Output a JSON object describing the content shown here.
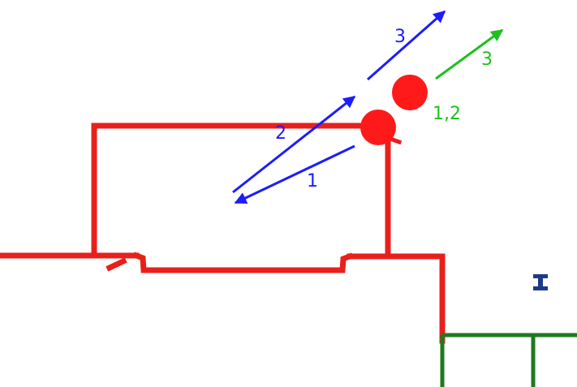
{
  "colors": {
    "wall": "#e8201c",
    "ball": "#ff1a1a",
    "blue_arrow": "#1c1cff",
    "green_arrow": "#1ec01e",
    "green_wall": "#1e7a1e",
    "dark_blue_mark": "#1a3a8a",
    "background": "#ffffff"
  },
  "labels": {
    "blue_1": "1",
    "blue_2": "2",
    "blue_3": "3",
    "green_12": "1,2",
    "green_3": "3"
  },
  "icons": {
    "marker": "i-beam-marker-icon"
  }
}
